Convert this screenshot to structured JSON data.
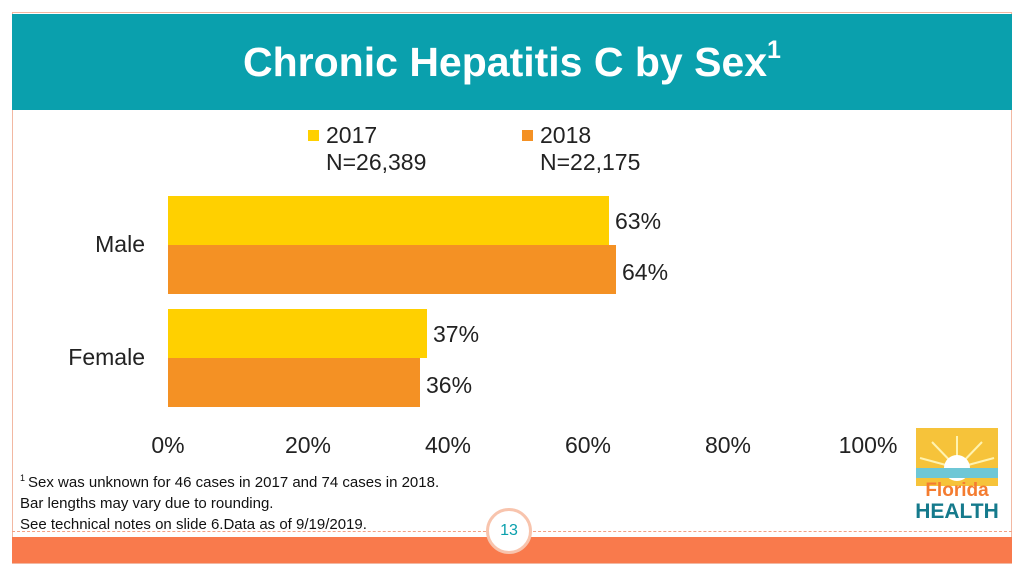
{
  "slide": {
    "title": "Chronic Hepatitis C by Sex",
    "title_superscript": "1",
    "page_number": "13",
    "footnote_marker": "1",
    "footnote_lines": [
      "Sex was unknown for 46 cases in 2017 and 74 cases in 2018.",
      "Bar lengths may vary due to rounding.",
      "See technical notes on slide 6.Data as of 9/19/2019."
    ],
    "logo": {
      "name": "florida-health-logo",
      "line1": "Florida",
      "line2": "HEALTH"
    }
  },
  "colors": {
    "header": "#0aa0ad",
    "series_2017": "#ffd000",
    "series_2018": "#f49124",
    "bottom_band": "#f97a4c"
  },
  "chart_data": {
    "type": "bar",
    "orientation": "horizontal",
    "categories": [
      "Male",
      "Female"
    ],
    "series": [
      {
        "name": "2017",
        "n_label": "N=26,389",
        "values": [
          63,
          37
        ],
        "labels": [
          "63%",
          "37%"
        ]
      },
      {
        "name": "2018",
        "n_label": "N=22,175",
        "values": [
          64,
          36
        ],
        "labels": [
          "64%",
          "36%"
        ]
      }
    ],
    "xlim": [
      0,
      100
    ],
    "xticks": [
      "0%",
      "20%",
      "40%",
      "60%",
      "80%",
      "100%"
    ],
    "xlabel": "",
    "ylabel": "",
    "legend_position": "top",
    "grid": false
  }
}
